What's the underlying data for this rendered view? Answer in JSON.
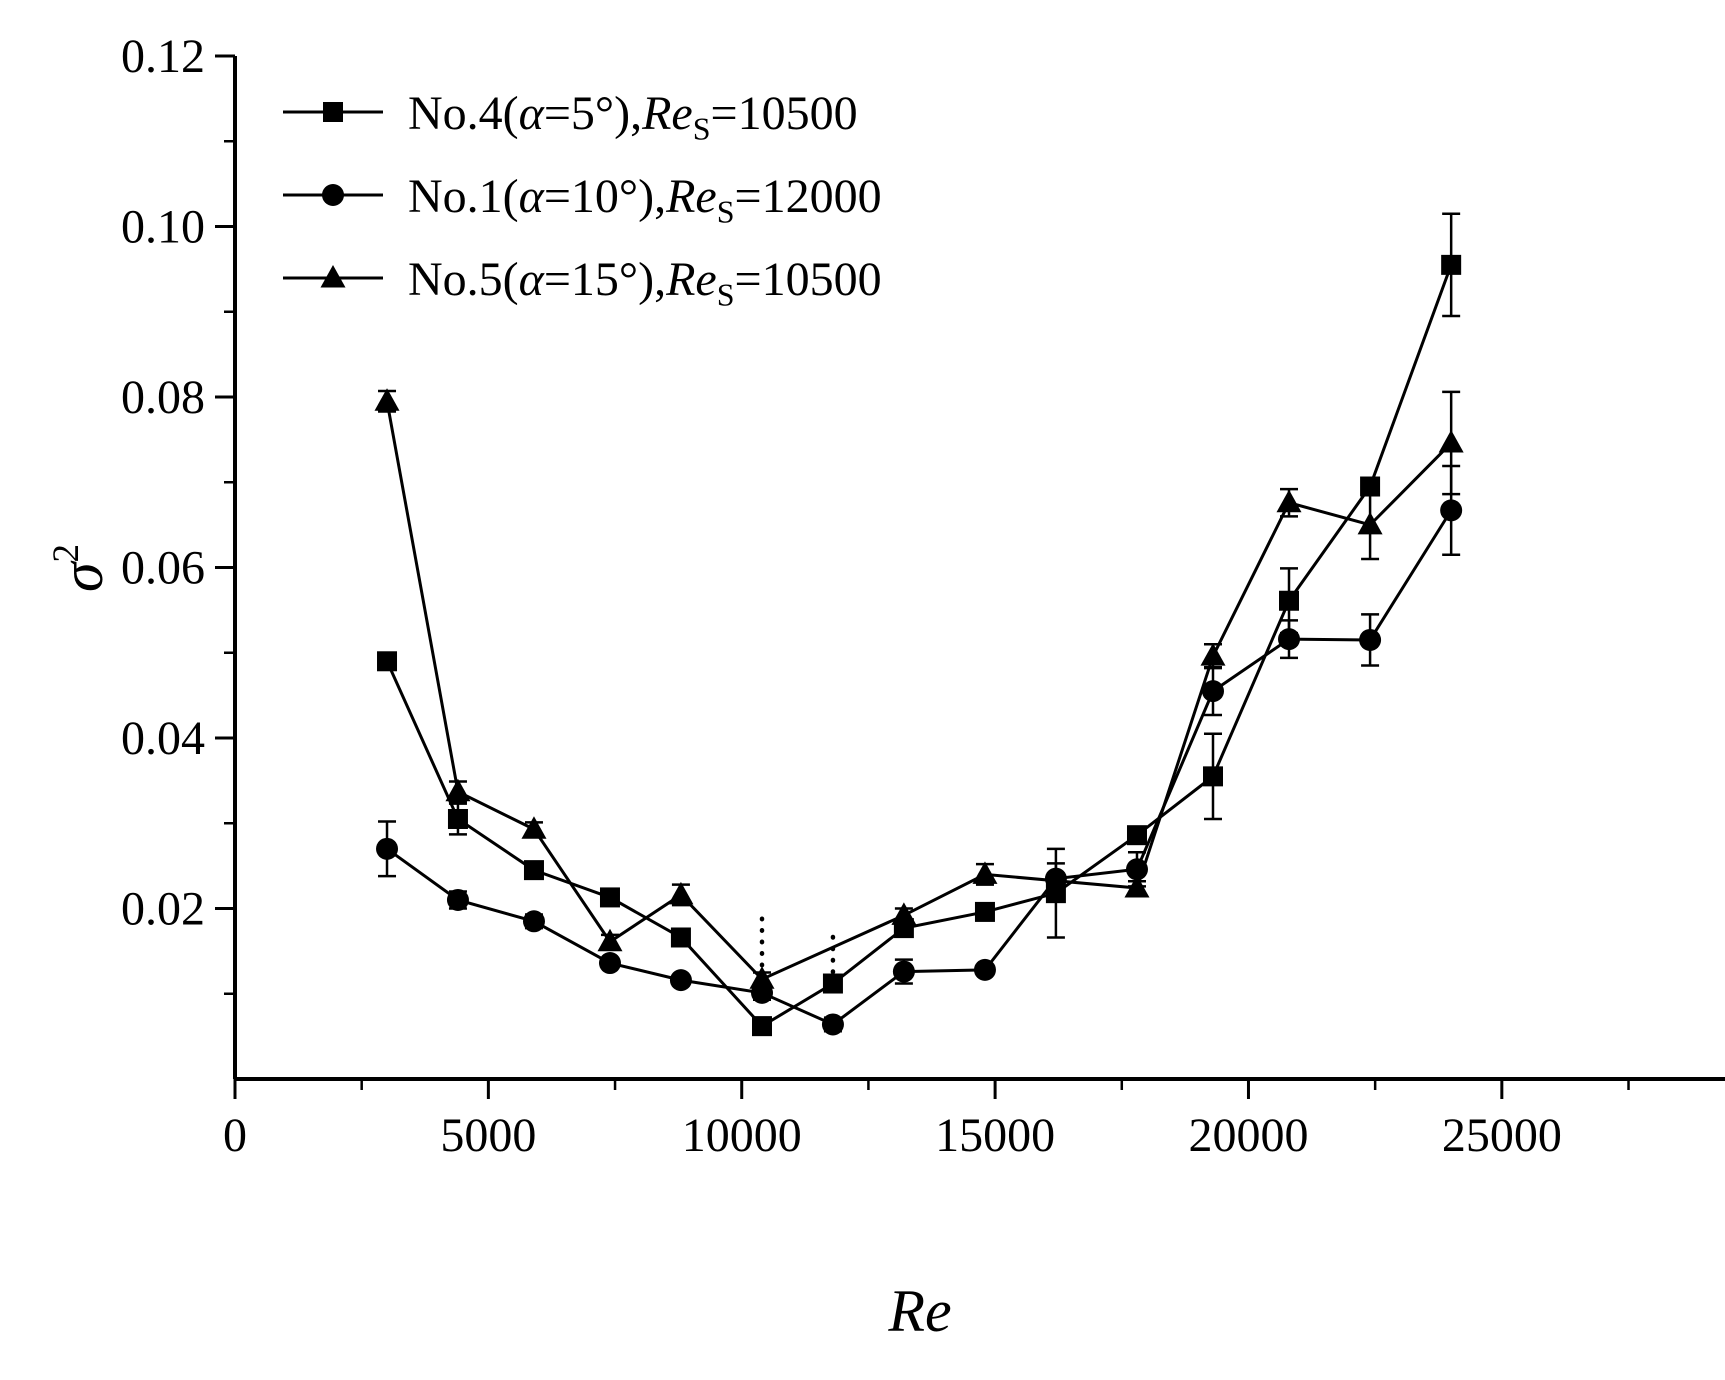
{
  "figure": {
    "background": "#ffffff",
    "ink_color": "#000000"
  },
  "chart_data": {
    "type": "line",
    "title": "",
    "xlabel": "Re",
    "ylabel": "σ2",
    "xlabel_parts": [
      {
        "text": "Re",
        "style": "italic"
      }
    ],
    "ylabel_parts": [
      {
        "text": "σ",
        "style": "italic"
      },
      {
        "text": "2",
        "style": "superscript"
      }
    ],
    "xlim": [
      0,
      29700
    ],
    "ylim": [
      0,
      0.12
    ],
    "grid": false,
    "legend_position": "upper-left-inside",
    "x_ticks": [
      0,
      5000,
      10000,
      15000,
      20000,
      25000
    ],
    "x_tick_labels": [
      "0",
      "5000",
      "10000",
      "15000",
      "20000",
      "25000"
    ],
    "x_minor_step": 2500,
    "y_ticks": [
      0.02,
      0.04,
      0.06,
      0.08,
      0.1,
      0.12
    ],
    "y_tick_labels": [
      "0.02",
      "0.04",
      "0.06",
      "0.08",
      "0.10",
      "0.12"
    ],
    "y_minor_step": 0.01,
    "series": [
      {
        "name": "No.4(α=5°),Re_S=10500",
        "marker": "square",
        "color": "#000000",
        "label_parts": [
          {
            "text": "No.4(",
            "style": "normal"
          },
          {
            "text": "α",
            "style": "italic"
          },
          {
            "text": "=5°),",
            "style": "normal"
          },
          {
            "text": "Re",
            "style": "italic"
          },
          {
            "text": "S",
            "style": "subscript"
          },
          {
            "text": "=10500",
            "style": "normal"
          }
        ],
        "x": [
          3000,
          4400,
          5900,
          7400,
          8800,
          10400,
          11800,
          13200,
          14800,
          16200,
          17800,
          19300,
          20800,
          22400,
          24000
        ],
        "y": [
          0.049,
          0.0305,
          0.0245,
          0.0213,
          0.0166,
          0.0062,
          0.0112,
          0.0177,
          0.0196,
          0.0218,
          0.0286,
          0.0355,
          0.0561,
          0.0695,
          0.0955
        ],
        "yerr": [
          0,
          0.0018,
          0,
          0,
          0,
          0.001,
          0.0008,
          0,
          0,
          0.0052,
          0,
          0.005,
          0.0038,
          0,
          0.006
        ]
      },
      {
        "name": "No.1(α=10°),Re_S=12000",
        "marker": "circle",
        "color": "#000000",
        "label_parts": [
          {
            "text": "No.1(",
            "style": "normal"
          },
          {
            "text": "α",
            "style": "italic"
          },
          {
            "text": "=10°),",
            "style": "normal"
          },
          {
            "text": "Re",
            "style": "italic"
          },
          {
            "text": "S",
            "style": "subscript"
          },
          {
            "text": "=12000",
            "style": "normal"
          }
        ],
        "x": [
          3000,
          4400,
          5900,
          7400,
          8800,
          10400,
          11800,
          13200,
          14800,
          16200,
          17800,
          19300,
          20800,
          22400,
          24000
        ],
        "y": [
          0.027,
          0.021,
          0.0185,
          0.0136,
          0.0116,
          0.0101,
          0.0064,
          0.0126,
          0.0128,
          0.0235,
          0.0246,
          0.0455,
          0.0516,
          0.0515,
          0.0667
        ],
        "yerr": [
          0.0032,
          0.001,
          0.0008,
          0,
          0,
          0.0008,
          0.0008,
          0.0014,
          0,
          0.0018,
          0.002,
          0.0028,
          0.0022,
          0.003,
          0.0052
        ]
      },
      {
        "name": "No.5(α=15°),Re_S=10500",
        "marker": "triangle",
        "color": "#000000",
        "label_parts": [
          {
            "text": "No.5(",
            "style": "normal"
          },
          {
            "text": "α",
            "style": "italic"
          },
          {
            "text": "=15°),",
            "style": "normal"
          },
          {
            "text": "Re",
            "style": "italic"
          },
          {
            "text": "S",
            "style": "subscript"
          },
          {
            "text": "=10500",
            "style": "normal"
          }
        ],
        "x": [
          3000,
          4400,
          5900,
          7400,
          8800,
          10400,
          13200,
          14800,
          17800,
          19300,
          20800,
          22400,
          24000
        ],
        "y": [
          0.0795,
          0.0337,
          0.0293,
          0.0161,
          0.0216,
          0.0117,
          0.0192,
          0.024,
          0.0224,
          0.0496,
          0.0676,
          0.065,
          0.0746
        ],
        "yerr": [
          0.0012,
          0.0012,
          0.0008,
          0.0008,
          0.0012,
          0.0008,
          0.0008,
          0.0012,
          0.0008,
          0.0014,
          0.0016,
          0.004,
          0.006
        ]
      }
    ],
    "dotted_error_bars": [
      {
        "x": 10400,
        "y_from": 0.012,
        "y_to": 0.019
      },
      {
        "x": 11800,
        "y_from": 0.0112,
        "y_to": 0.017
      }
    ]
  }
}
